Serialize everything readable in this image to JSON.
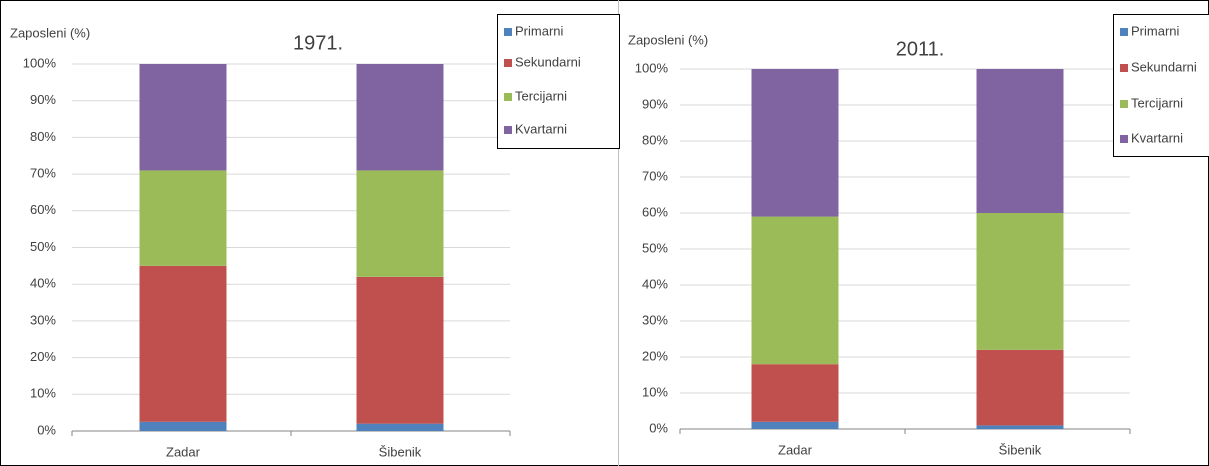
{
  "chart_data": [
    {
      "type": "bar",
      "stacked": true,
      "title": "1971.",
      "y_label": "Zaposleni (%)",
      "categories": [
        "Zadar",
        "Šibenik"
      ],
      "series": [
        {
          "name": "Primarni",
          "color": "#4f81bd",
          "values": [
            2.5,
            2
          ]
        },
        {
          "name": "Sekundarni",
          "color": "#c0504d",
          "values": [
            42.5,
            40
          ]
        },
        {
          "name": "Tercijarni",
          "color": "#9bbb59",
          "values": [
            26,
            29
          ]
        },
        {
          "name": "Kvartarni",
          "color": "#8064a2",
          "values": [
            29,
            29
          ]
        }
      ],
      "ylim": [
        0,
        100
      ],
      "yticks": [
        {
          "value": 0,
          "label": "0%"
        },
        {
          "value": 10,
          "label": "10%"
        },
        {
          "value": 20,
          "label": "20%"
        },
        {
          "value": 30,
          "label": "30%"
        },
        {
          "value": 40,
          "label": "40%"
        },
        {
          "value": 50,
          "label": "50%"
        },
        {
          "value": 60,
          "label": "60%"
        },
        {
          "value": 70,
          "label": "70%"
        },
        {
          "value": 80,
          "label": "80%"
        },
        {
          "value": 90,
          "label": "90%"
        },
        {
          "value": 100,
          "label": "100%"
        }
      ],
      "grid": true,
      "legend": "top-right"
    },
    {
      "type": "bar",
      "stacked": true,
      "title": "2011.",
      "y_label": "Zaposleni (%)",
      "categories": [
        "Zadar",
        "Šibenik"
      ],
      "series": [
        {
          "name": "Primarni",
          "color": "#4f81bd",
          "values": [
            2,
            1
          ]
        },
        {
          "name": "Sekundarni",
          "color": "#c0504d",
          "values": [
            16,
            21
          ]
        },
        {
          "name": "Tercijarni",
          "color": "#9bbb59",
          "values": [
            41,
            38
          ]
        },
        {
          "name": "Kvartarni",
          "color": "#8064a2",
          "values": [
            41,
            40
          ]
        }
      ],
      "ylim": [
        0,
        100
      ],
      "yticks": [
        {
          "value": 0,
          "label": "0%"
        },
        {
          "value": 10,
          "label": "10%"
        },
        {
          "value": 20,
          "label": "20%"
        },
        {
          "value": 30,
          "label": "30%"
        },
        {
          "value": 40,
          "label": "40%"
        },
        {
          "value": 50,
          "label": "50%"
        },
        {
          "value": 60,
          "label": "60%"
        },
        {
          "value": 70,
          "label": "70%"
        },
        {
          "value": 80,
          "label": "80%"
        },
        {
          "value": 90,
          "label": "90%"
        },
        {
          "value": 100,
          "label": "100%"
        }
      ],
      "grid": true,
      "legend": "top-right"
    }
  ]
}
